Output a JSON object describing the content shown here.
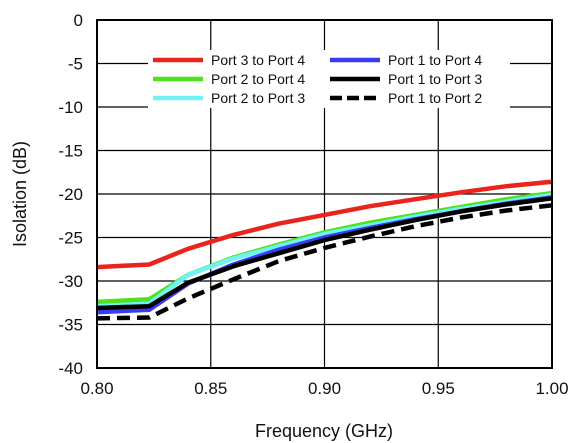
{
  "chart_data": {
    "type": "line",
    "title": "",
    "xlabel": "Frequency (GHz)",
    "ylabel": "Isolation (dB)",
    "xlim": [
      0.8,
      1.0
    ],
    "ylim": [
      -40,
      0
    ],
    "x_ticks": [
      "0.80",
      "0.85",
      "0.90",
      "0.95",
      "1.00"
    ],
    "y_ticks": [
      "0",
      "-5",
      "-10",
      "-15",
      "-20",
      "-25",
      "-30",
      "-35",
      "-40"
    ],
    "grid": true,
    "legend_position": "top",
    "series": [
      {
        "name": "Port 3 to Port 4",
        "color": "#e8241c",
        "dash": "solid",
        "x": [
          0.8,
          0.823,
          0.84,
          0.86,
          0.88,
          0.9,
          0.92,
          0.94,
          0.96,
          0.98,
          1.0
        ],
        "y": [
          -28.4,
          -28.1,
          -26.3,
          -24.7,
          -23.4,
          -22.4,
          -21.4,
          -20.6,
          -19.8,
          -19.1,
          -18.6
        ]
      },
      {
        "name": "Port 2 to Port 4",
        "color": "#4fe01e",
        "dash": "solid",
        "x": [
          0.8,
          0.823,
          0.84,
          0.86,
          0.88,
          0.9,
          0.92,
          0.94,
          0.96,
          0.98,
          1.0
        ],
        "y": [
          -32.4,
          -32.1,
          -29.3,
          -27.3,
          -25.8,
          -24.4,
          -23.3,
          -22.4,
          -21.5,
          -20.6,
          -19.9
        ]
      },
      {
        "name": "Port 2 to Port 3",
        "color": "#6ef2f2",
        "dash": "solid",
        "x": [
          0.8,
          0.823,
          0.84,
          0.86,
          0.88,
          0.9,
          0.92,
          0.94,
          0.96,
          0.98,
          1.0
        ],
        "y": [
          -32.9,
          -32.6,
          -29.3,
          -27.4,
          -26.0,
          -24.6,
          -23.6,
          -22.6,
          -21.7,
          -20.9,
          -20.1
        ]
      },
      {
        "name": "Port 1 to Port 4",
        "color": "#3a3cf0",
        "dash": "solid",
        "x": [
          0.8,
          0.823,
          0.84,
          0.86,
          0.88,
          0.9,
          0.92,
          0.94,
          0.96,
          0.98,
          1.0
        ],
        "y": [
          -33.6,
          -33.3,
          -30.3,
          -28.1,
          -26.4,
          -25.0,
          -23.9,
          -22.9,
          -22.0,
          -21.1,
          -20.4
        ]
      },
      {
        "name": "Port 1 to Port 3",
        "color": "#000000",
        "dash": "solid",
        "x": [
          0.8,
          0.823,
          0.84,
          0.86,
          0.88,
          0.9,
          0.92,
          0.94,
          0.96,
          0.98,
          1.0
        ],
        "y": [
          -33.1,
          -32.9,
          -30.2,
          -28.3,
          -26.8,
          -25.3,
          -24.1,
          -23.0,
          -22.0,
          -21.2,
          -20.5
        ]
      },
      {
        "name": "Port 1 to Port 2",
        "color": "#000000",
        "dash": "dashed",
        "x": [
          0.8,
          0.823,
          0.84,
          0.86,
          0.88,
          0.9,
          0.92,
          0.94,
          0.96,
          0.98,
          1.0
        ],
        "y": [
          -34.3,
          -34.2,
          -32.0,
          -29.8,
          -27.7,
          -26.2,
          -24.9,
          -23.7,
          -22.7,
          -21.9,
          -21.3
        ]
      }
    ]
  }
}
